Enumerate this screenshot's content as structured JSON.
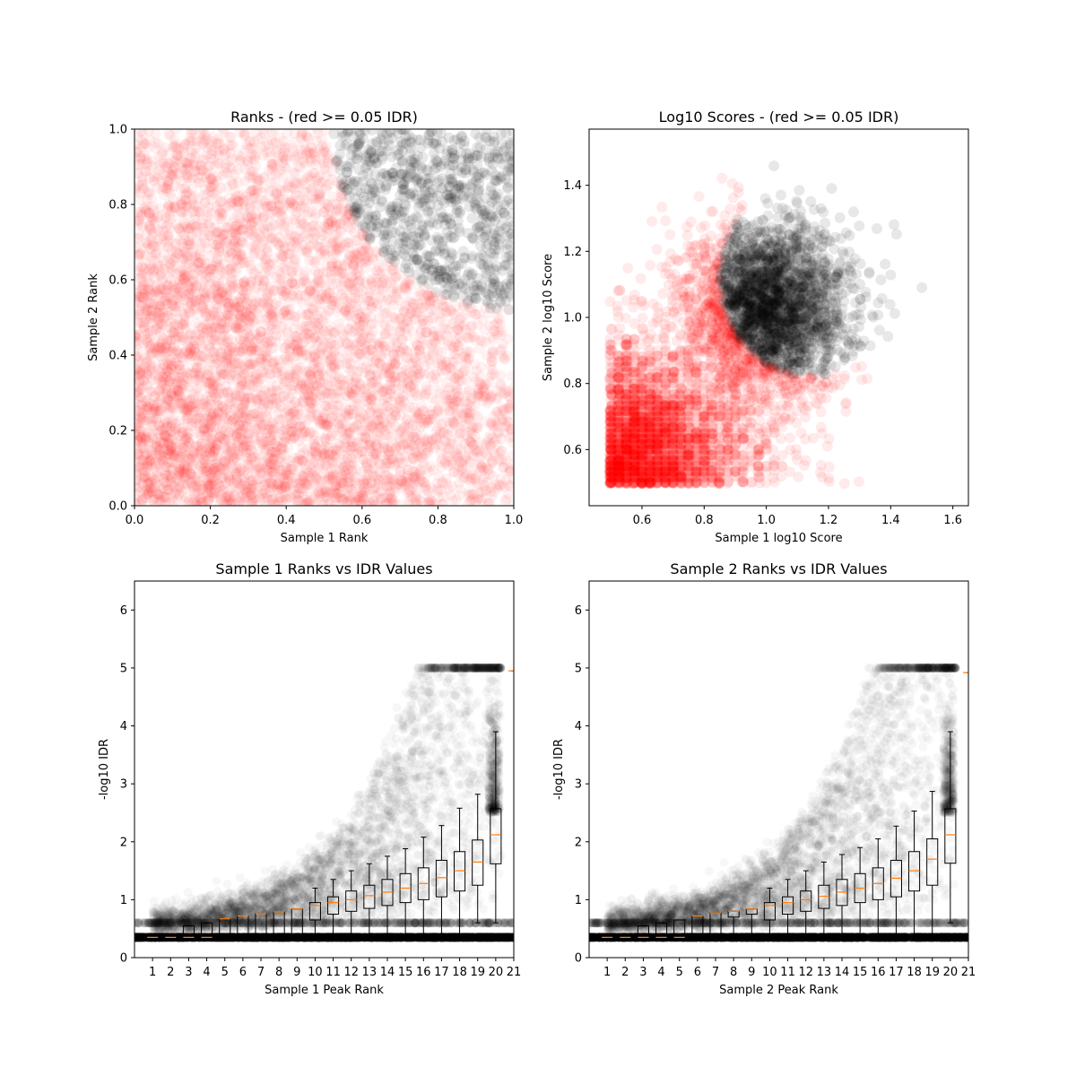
{
  "chart_data": [
    {
      "id": "ranks",
      "type": "scatter",
      "title": "Ranks - (red >= 0.05 IDR)",
      "xlabel": "Sample 1 Rank",
      "ylabel": "Sample 2 Rank",
      "xlim": [
        0,
        1
      ],
      "ylim": [
        0,
        1
      ],
      "xticks": [
        "0.0",
        "0.2",
        "0.4",
        "0.6",
        "0.8",
        "1.0"
      ],
      "yticks": [
        "0.0",
        "0.2",
        "0.4",
        "0.6",
        "0.8",
        "1.0"
      ],
      "grid": false,
      "colors": {
        "low_idr": "#ff0000",
        "high_idr": "#000000"
      },
      "boundary": {
        "center": [
          1.0,
          1.0
        ],
        "radius": 0.48
      },
      "point_alpha": 0.05
    },
    {
      "id": "scores",
      "type": "scatter",
      "title": "Log10 Scores - (red >= 0.05 IDR)",
      "xlabel": "Sample 1 log10 Score",
      "ylabel": "Sample 2 log10 Score",
      "xlim": [
        0.43,
        1.65
      ],
      "ylim": [
        0.43,
        1.57
      ],
      "xticks": [
        "0.6",
        "0.8",
        "1.0",
        "1.2",
        "1.4",
        "1.6"
      ],
      "yticks": [
        "0.6",
        "0.8",
        "1.0",
        "1.2",
        "1.4"
      ],
      "grid": false,
      "colors": {
        "low_idr": "#ff0000",
        "high_idr": "#000000"
      },
      "boundary": {
        "center": [
          1.15,
          1.12
        ],
        "radius": 0.3
      },
      "point_alpha": 0.08
    },
    {
      "id": "s1idr",
      "type": "box",
      "title": "Sample 1 Ranks vs IDR Values",
      "xlabel": "Sample 1 Peak Rank",
      "ylabel": "-log10 IDR",
      "xlim": [
        0,
        21
      ],
      "ylim": [
        0,
        6.5
      ],
      "xticks": [
        "1",
        "2",
        "3",
        "4",
        "5",
        "6",
        "7",
        "8",
        "9",
        "10",
        "11",
        "12",
        "13",
        "14",
        "15",
        "16",
        "17",
        "18",
        "19",
        "20",
        "21"
      ],
      "yticks": [
        "0",
        "1",
        "2",
        "3",
        "4",
        "5",
        "6"
      ],
      "grid": false,
      "median_color": "#ff7f0e",
      "boxes": [
        {
          "x": 1,
          "whislo": 0.35,
          "q1": 0.35,
          "med": 0.35,
          "q3": 0.35,
          "whishi": 0.35
        },
        {
          "x": 2,
          "whislo": 0.35,
          "q1": 0.35,
          "med": 0.35,
          "q3": 0.35,
          "whishi": 0.35
        },
        {
          "x": 3,
          "whislo": 0.35,
          "q1": 0.35,
          "med": 0.35,
          "q3": 0.55,
          "whishi": 0.55
        },
        {
          "x": 4,
          "whislo": 0.35,
          "q1": 0.35,
          "med": 0.35,
          "q3": 0.6,
          "whishi": 0.6
        },
        {
          "x": 5,
          "whislo": 0.35,
          "q1": 0.35,
          "med": 0.67,
          "q3": 0.67,
          "whishi": 0.67
        },
        {
          "x": 6,
          "whislo": 0.35,
          "q1": 0.35,
          "med": 0.72,
          "q3": 0.72,
          "whishi": 0.72
        },
        {
          "x": 7,
          "whislo": 0.35,
          "q1": 0.35,
          "med": 0.76,
          "q3": 0.76,
          "whishi": 0.76
        },
        {
          "x": 8,
          "whislo": 0.35,
          "q1": 0.35,
          "med": 0.79,
          "q3": 0.79,
          "whishi": 0.79
        },
        {
          "x": 9,
          "whislo": 0.35,
          "q1": 0.35,
          "med": 0.84,
          "q3": 0.84,
          "whishi": 0.84
        },
        {
          "x": 10,
          "whislo": 0.35,
          "q1": 0.65,
          "med": 0.9,
          "q3": 0.95,
          "whishi": 1.2
        },
        {
          "x": 11,
          "whislo": 0.35,
          "q1": 0.75,
          "med": 0.95,
          "q3": 1.05,
          "whishi": 1.35
        },
        {
          "x": 12,
          "whislo": 0.35,
          "q1": 0.8,
          "med": 1.0,
          "q3": 1.15,
          "whishi": 1.5
        },
        {
          "x": 13,
          "whislo": 0.35,
          "q1": 0.85,
          "med": 1.07,
          "q3": 1.25,
          "whishi": 1.62
        },
        {
          "x": 14,
          "whislo": 0.35,
          "q1": 0.9,
          "med": 1.13,
          "q3": 1.35,
          "whishi": 1.75
        },
        {
          "x": 15,
          "whislo": 0.35,
          "q1": 0.95,
          "med": 1.2,
          "q3": 1.45,
          "whishi": 1.88
        },
        {
          "x": 16,
          "whislo": 0.35,
          "q1": 1.0,
          "med": 1.28,
          "q3": 1.55,
          "whishi": 2.08
        },
        {
          "x": 17,
          "whislo": 0.35,
          "q1": 1.05,
          "med": 1.38,
          "q3": 1.68,
          "whishi": 2.28
        },
        {
          "x": 18,
          "whislo": 0.35,
          "q1": 1.15,
          "med": 1.5,
          "q3": 1.83,
          "whishi": 2.58
        },
        {
          "x": 19,
          "whislo": 0.6,
          "q1": 1.25,
          "med": 1.65,
          "q3": 2.03,
          "whishi": 2.82
        },
        {
          "x": 20,
          "whislo": 0.6,
          "q1": 1.62,
          "med": 2.12,
          "q3": 2.57,
          "whishi": 3.9
        },
        {
          "x": 21,
          "whislo": 4.95,
          "q1": 4.95,
          "med": 4.95,
          "q3": 4.95,
          "whishi": 4.95
        }
      ]
    },
    {
      "id": "s2idr",
      "type": "box",
      "title": "Sample 2 Ranks vs IDR Values",
      "xlabel": "Sample 2 Peak Rank",
      "ylabel": "-log10 IDR",
      "xlim": [
        0,
        21
      ],
      "ylim": [
        0,
        6.5
      ],
      "xticks": [
        "1",
        "2",
        "3",
        "4",
        "5",
        "6",
        "7",
        "8",
        "9",
        "10",
        "11",
        "12",
        "13",
        "14",
        "15",
        "16",
        "17",
        "18",
        "19",
        "20",
        "21"
      ],
      "yticks": [
        "0",
        "1",
        "2",
        "3",
        "4",
        "5",
        "6"
      ],
      "grid": false,
      "median_color": "#ff7f0e",
      "boxes": [
        {
          "x": 1,
          "whislo": 0.35,
          "q1": 0.35,
          "med": 0.35,
          "q3": 0.35,
          "whishi": 0.35
        },
        {
          "x": 2,
          "whislo": 0.35,
          "q1": 0.35,
          "med": 0.35,
          "q3": 0.35,
          "whishi": 0.35
        },
        {
          "x": 3,
          "whislo": 0.35,
          "q1": 0.35,
          "med": 0.35,
          "q3": 0.55,
          "whishi": 0.55
        },
        {
          "x": 4,
          "whislo": 0.35,
          "q1": 0.35,
          "med": 0.35,
          "q3": 0.6,
          "whishi": 0.6
        },
        {
          "x": 5,
          "whislo": 0.35,
          "q1": 0.35,
          "med": 0.35,
          "q3": 0.65,
          "whishi": 0.65
        },
        {
          "x": 6,
          "whislo": 0.35,
          "q1": 0.35,
          "med": 0.72,
          "q3": 0.72,
          "whishi": 0.72
        },
        {
          "x": 7,
          "whislo": 0.35,
          "q1": 0.35,
          "med": 0.77,
          "q3": 0.77,
          "whishi": 0.77
        },
        {
          "x": 8,
          "whislo": 0.35,
          "q1": 0.7,
          "med": 0.8,
          "q3": 0.8,
          "whishi": 0.8
        },
        {
          "x": 9,
          "whislo": 0.35,
          "q1": 0.75,
          "med": 0.84,
          "q3": 0.84,
          "whishi": 0.84
        },
        {
          "x": 10,
          "whislo": 0.35,
          "q1": 0.65,
          "med": 0.9,
          "q3": 0.95,
          "whishi": 1.2
        },
        {
          "x": 11,
          "whislo": 0.35,
          "q1": 0.75,
          "med": 0.95,
          "q3": 1.05,
          "whishi": 1.35
        },
        {
          "x": 12,
          "whislo": 0.35,
          "q1": 0.8,
          "med": 1.0,
          "q3": 1.15,
          "whishi": 1.5
        },
        {
          "x": 13,
          "whislo": 0.35,
          "q1": 0.85,
          "med": 1.06,
          "q3": 1.25,
          "whishi": 1.65
        },
        {
          "x": 14,
          "whislo": 0.35,
          "q1": 0.9,
          "med": 1.13,
          "q3": 1.35,
          "whishi": 1.78
        },
        {
          "x": 15,
          "whislo": 0.35,
          "q1": 0.95,
          "med": 1.2,
          "q3": 1.45,
          "whishi": 1.9
        },
        {
          "x": 16,
          "whislo": 0.35,
          "q1": 1.0,
          "med": 1.28,
          "q3": 1.55,
          "whishi": 2.05
        },
        {
          "x": 17,
          "whislo": 0.35,
          "q1": 1.05,
          "med": 1.37,
          "q3": 1.68,
          "whishi": 2.27
        },
        {
          "x": 18,
          "whislo": 0.35,
          "q1": 1.15,
          "med": 1.5,
          "q3": 1.83,
          "whishi": 2.53
        },
        {
          "x": 19,
          "whislo": 0.35,
          "q1": 1.25,
          "med": 1.7,
          "q3": 2.05,
          "whishi": 2.87
        },
        {
          "x": 20,
          "whislo": 0.6,
          "q1": 1.63,
          "med": 2.12,
          "q3": 2.57,
          "whishi": 3.9
        },
        {
          "x": 21,
          "whislo": 4.92,
          "q1": 4.92,
          "med": 4.92,
          "q3": 4.92,
          "whishi": 4.92
        }
      ]
    }
  ]
}
